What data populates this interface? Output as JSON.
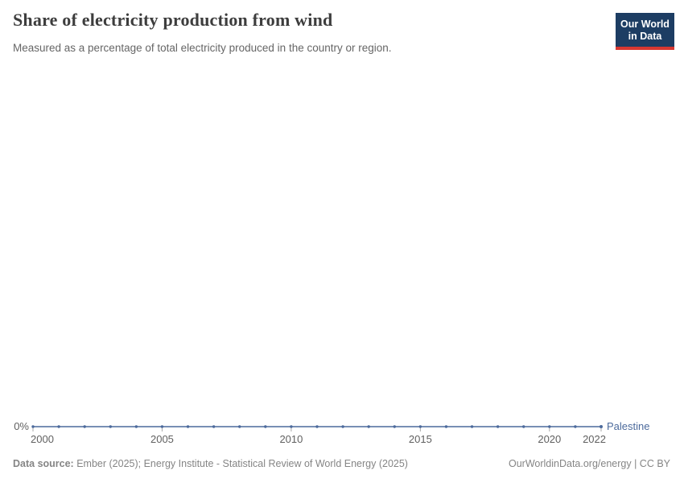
{
  "header": {
    "title": "Share of electricity production from wind",
    "subtitle": "Measured as a percentage of total electricity produced in the country or region."
  },
  "logo": {
    "line1": "Our World",
    "line2": "in Data"
  },
  "chart_data": {
    "type": "line",
    "title": "Share of electricity production from wind",
    "xlabel": "",
    "ylabel": "Share of electricity production from wind (%)",
    "x": [
      2000,
      2001,
      2002,
      2003,
      2004,
      2005,
      2006,
      2007,
      2008,
      2009,
      2010,
      2011,
      2012,
      2013,
      2014,
      2015,
      2016,
      2017,
      2018,
      2019,
      2020,
      2021,
      2022
    ],
    "series": [
      {
        "name": "Palestine",
        "color": "#4C6A9C",
        "values": [
          0,
          0,
          0,
          0,
          0,
          0,
          0,
          0,
          0,
          0,
          0,
          0,
          0,
          0,
          0,
          0,
          0,
          0,
          0,
          0,
          0,
          0,
          0
        ]
      }
    ],
    "unit": "%",
    "x_ticks": [
      2000,
      2005,
      2010,
      2015,
      2020,
      2022
    ],
    "y_ticks": [
      "0%"
    ],
    "ylim": [
      0,
      0
    ],
    "grid": false,
    "legend": "inline-end-label"
  },
  "footer": {
    "datasource_label": "Data source:",
    "datasource_text": " Ember (2025); Energy Institute - Statistical Review of World Energy (2025)",
    "credit": "OurWorldinData.org/energy | CC BY"
  },
  "colors": {
    "line": "#4C6A9C",
    "logo_bg": "#1d3d63",
    "logo_accent": "#d83731",
    "axis_tick": "#a9a9a9"
  }
}
